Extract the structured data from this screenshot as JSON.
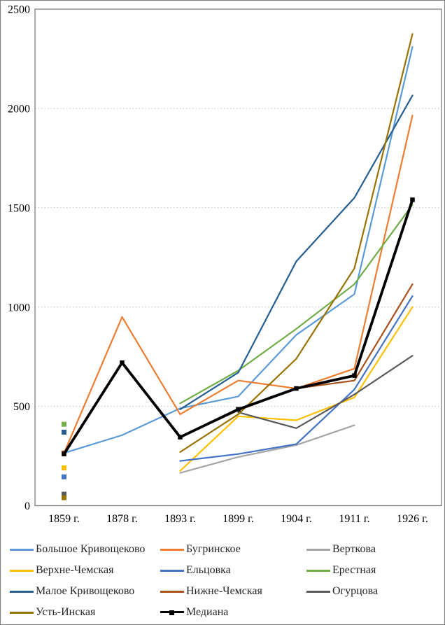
{
  "chart_data": {
    "type": "line",
    "title": "",
    "xlabel": "",
    "ylabel": "",
    "ylim": [
      0,
      2500
    ],
    "yticks": [
      0,
      500,
      1000,
      1500,
      2000,
      2500
    ],
    "grid": "horizontal-dotted",
    "legend_position": "bottom",
    "categories": [
      "1859 г.",
      "1878 г.",
      "1893 г.",
      "1899 г.",
      "1904 г.",
      "1911 г.",
      "1926 г."
    ],
    "series": [
      {
        "name": "Большое Кривощеково",
        "color": "#5B9BD5",
        "values": [
          265,
          355,
          490,
          550,
          860,
          1065,
          2310
        ]
      },
      {
        "name": "Бугринское",
        "color": "#ED7D31",
        "values": [
          265,
          950,
          460,
          630,
          590,
          690,
          1965
        ]
      },
      {
        "name": "Верткова",
        "color": "#A5A5A5",
        "values": [
          null,
          null,
          165,
          245,
          305,
          405,
          null
        ]
      },
      {
        "name": "Верхне-Чемская",
        "color": "#FFC000",
        "values": [
          190,
          null,
          175,
          450,
          430,
          545,
          1000
        ]
      },
      {
        "name": "Ельцовка",
        "color": "#4472C4",
        "values": [
          145,
          null,
          225,
          260,
          310,
          585,
          1055
        ]
      },
      {
        "name": "Ерестная",
        "color": "#70AD47",
        "values": [
          410,
          null,
          515,
          680,
          890,
          1115,
          1515
        ]
      },
      {
        "name": "Малое Кривощеково",
        "color": "#255E91",
        "values": [
          370,
          null,
          485,
          670,
          1230,
          1550,
          2065
        ]
      },
      {
        "name": "Нижне-Чемская",
        "color": "#A9511C",
        "values": [
          265,
          null,
          345,
          480,
          590,
          630,
          1115
        ]
      },
      {
        "name": "Огурцова",
        "color": "#5A5A5A",
        "values": [
          58,
          null,
          null,
          470,
          390,
          560,
          755
        ]
      },
      {
        "name": "Усть-Инская",
        "color": "#997300",
        "values": [
          40,
          null,
          270,
          460,
          740,
          1195,
          2375
        ]
      },
      {
        "name": "Медиана",
        "color": "#000000",
        "values": [
          260,
          720,
          345,
          485,
          590,
          655,
          1540
        ],
        "marker": "square"
      }
    ]
  },
  "frame": {
    "plot_border_color": "#808080",
    "gridline_color": "#BFBFBF"
  }
}
